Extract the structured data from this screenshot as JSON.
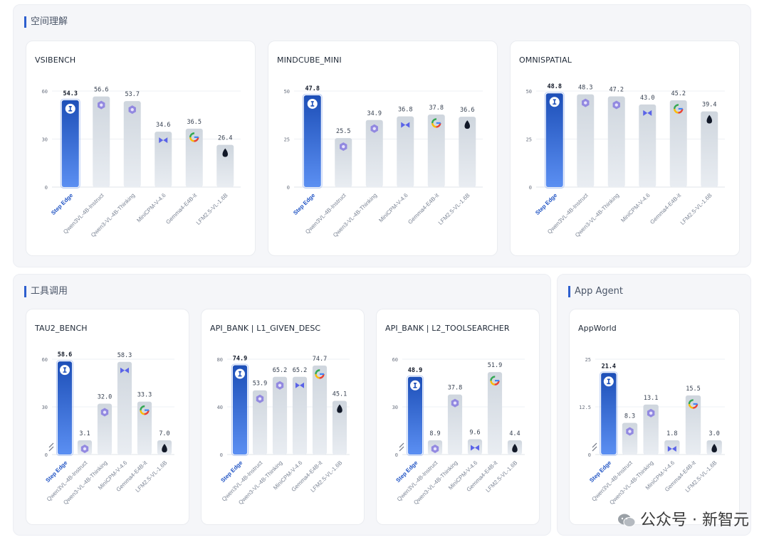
{
  "sections": [
    {
      "title": "空间理解"
    },
    {
      "title": "工具调用"
    },
    {
      "title": "App Agent"
    }
  ],
  "colors": {
    "highlight_top": "#1d4fb8",
    "highlight_bottom": "#5b8ff2",
    "bar_top": "#cfd6de",
    "bar_bottom": "#e9edf2",
    "highlight_label": "#2255c4"
  },
  "models": [
    "Step Edge",
    "Qwen3VL-4B-Instruct",
    "Qwen3-VL-4B-Thinking",
    "MiniCPM-V-4.6",
    "Gemma4-E4B-it",
    "LFM2.5-VL-1.6B"
  ],
  "model_icons": [
    "stepfun-icon",
    "qwen-icon",
    "qwen-icon",
    "minicpm-icon",
    "google-icon",
    "liquid-icon"
  ],
  "chart_data": [
    {
      "type": "bar",
      "title": "VSIBENCH",
      "categories": [
        "Step Edge",
        "Qwen3VL-4B-Instruct",
        "Qwen3-VL-4B-Thinking",
        "MiniCPM-V-4.6",
        "Gemma4-E4B-it",
        "LFM2.5-VL-1.6B"
      ],
      "values": [
        54.3,
        56.6,
        53.7,
        34.6,
        36.5,
        26.4
      ],
      "yticks": [
        "0",
        "30",
        "60"
      ],
      "ylim": [
        0,
        60
      ],
      "broken_axis": false
    },
    {
      "type": "bar",
      "title": "MINDCUBE_MINI",
      "categories": [
        "Step Edge",
        "Qwen3VL-4B-Instruct",
        "Qwen3-VL-4B-Thinking",
        "MiniCPM-V-4.6",
        "Gemma4-E4B-it",
        "LFM2.5-VL-1.6B"
      ],
      "values": [
        47.8,
        25.5,
        34.9,
        36.8,
        37.8,
        36.6
      ],
      "yticks": [
        "0",
        "25",
        "50"
      ],
      "ylim": [
        0,
        50
      ],
      "broken_axis": false
    },
    {
      "type": "bar",
      "title": "OMNISPATIAL",
      "categories": [
        "Step Edge",
        "Qwen3VL-4B-Instruct",
        "Qwen3-VL-4B-Thinking",
        "MiniCPM-V-4.6",
        "Gemma4-E4B-it",
        "LFM2.5-VL-1.6B"
      ],
      "values": [
        48.8,
        48.3,
        47.2,
        43.0,
        45.2,
        39.4
      ],
      "yticks": [
        "0",
        "25",
        "50"
      ],
      "ylim": [
        0,
        50
      ],
      "broken_axis": false
    },
    {
      "type": "bar",
      "title": "TAU2_BENCH",
      "categories": [
        "Step Edge",
        "Qwen3VL-4B-Instruct",
        "Qwen3-VL-4B-Thinking",
        "MiniCPM-V-4.6",
        "Gemma4-E4B-it",
        "LFM2.5-VL-1.6B"
      ],
      "values": [
        58.6,
        3.1,
        32.0,
        58.3,
        33.3,
        7.0
      ],
      "yticks": [
        "0",
        "30",
        "60"
      ],
      "ylim": [
        0,
        60
      ],
      "broken_axis": true
    },
    {
      "type": "bar",
      "title": "API_BANK | L1_GIVEN_DESC",
      "categories": [
        "Step Edge",
        "Qwen3VL-4B-Instruct",
        "Qwen3-VL-4B-Thinking",
        "MiniCPM-V-4.6",
        "Gemma4-E4B-it",
        "LFM2.5-VL-1.6B"
      ],
      "values": [
        74.9,
        53.9,
        65.2,
        65.2,
        74.7,
        45.1
      ],
      "yticks": [
        "0",
        "40",
        "80"
      ],
      "ylim": [
        0,
        80
      ],
      "broken_axis": false
    },
    {
      "type": "bar",
      "title": "API_BANK | L2_TOOLSEARCHER",
      "categories": [
        "Step Edge",
        "Qwen3VL-4B-Instruct",
        "Qwen3-VL-4B-Thinking",
        "MiniCPM-V-4.6",
        "Gemma4-E4B-it",
        "LFM2.5-VL-1.6B"
      ],
      "values": [
        48.9,
        8.9,
        37.8,
        9.6,
        51.9,
        4.4
      ],
      "yticks": [
        "0",
        "30",
        "60"
      ],
      "ylim": [
        0,
        60
      ],
      "broken_axis": true
    },
    {
      "type": "bar",
      "title": "AppWorld",
      "categories": [
        "Step Edge",
        "Qwen3VL-4B-Instruct",
        "Qwen3-VL-4B-Thinking",
        "MiniCPM-V-4.6",
        "Gemma4-E4B-it",
        "LFM2.5-VL-1.6B"
      ],
      "values": [
        21.4,
        8.3,
        13.1,
        1.8,
        15.5,
        3.0
      ],
      "yticks": [
        "0",
        "12.5",
        "25"
      ],
      "ylim": [
        0,
        25
      ],
      "broken_axis": true
    }
  ],
  "watermark": "公众号 · 新智元"
}
